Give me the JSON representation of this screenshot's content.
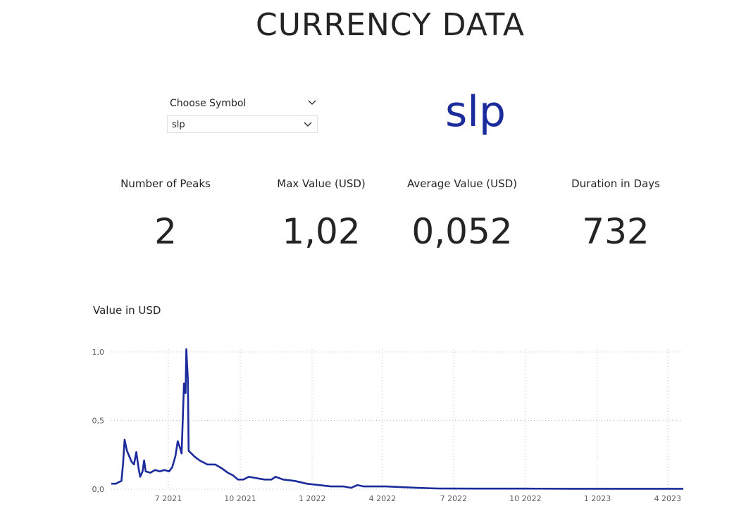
{
  "report": {
    "title": "CURRENCY DATA"
  },
  "slicer": {
    "label": "Choose Symbol",
    "selected": "slp"
  },
  "card": {
    "symbol": "slp"
  },
  "kpis": [
    {
      "label": "Number of Peaks",
      "value": "2"
    },
    {
      "label": "Max Value (USD)",
      "value": "1,02"
    },
    {
      "label": "Average Value (USD)",
      "value": "0,052"
    },
    {
      "label": "Duration in Days",
      "value": "732"
    }
  ],
  "icons": {
    "slicer_header": "chevron-down-icon",
    "slicer_dropdown": "chevron-down-icon"
  },
  "colors": {
    "series": "#1b2b9b",
    "symbol": "#1b2b9b",
    "gridline": "#c8c6c4"
  },
  "chart_data": {
    "type": "line",
    "title": "Value in USD",
    "x_ticks": [
      "7 2021",
      "10 2021",
      "1 2022",
      "4 2022",
      "7 2022",
      "10 2022",
      "1 2023",
      "4 2023"
    ],
    "x_tick_dates": [
      "2021-07-01",
      "2021-10-01",
      "2022-01-01",
      "2022-04-01",
      "2022-07-01",
      "2022-10-01",
      "2023-01-01",
      "2023-04-01"
    ],
    "y_ticks": [
      "0,0",
      "0,5",
      "1,0"
    ],
    "y_tick_values": [
      0,
      0.5,
      1.0
    ],
    "ylim": [
      0,
      1.0
    ],
    "x_range": [
      "2021-04-19",
      "2023-04-21"
    ],
    "grid": true,
    "series": [
      {
        "points": [
          [
            "2021-04-19",
            0.04
          ],
          [
            "2021-04-25",
            0.04
          ],
          [
            "2021-04-28",
            0.05
          ],
          [
            "2021-05-02",
            0.06
          ],
          [
            "2021-05-04",
            0.18
          ],
          [
            "2021-05-06",
            0.36
          ],
          [
            "2021-05-09",
            0.28
          ],
          [
            "2021-05-12",
            0.24
          ],
          [
            "2021-05-15",
            0.2
          ],
          [
            "2021-05-18",
            0.18
          ],
          [
            "2021-05-21",
            0.27
          ],
          [
            "2021-05-24",
            0.15
          ],
          [
            "2021-05-26",
            0.09
          ],
          [
            "2021-05-29",
            0.13
          ],
          [
            "2021-05-31",
            0.21
          ],
          [
            "2021-06-02",
            0.13
          ],
          [
            "2021-06-08",
            0.12
          ],
          [
            "2021-06-14",
            0.14
          ],
          [
            "2021-06-20",
            0.13
          ],
          [
            "2021-06-26",
            0.14
          ],
          [
            "2021-07-02",
            0.13
          ],
          [
            "2021-07-06",
            0.16
          ],
          [
            "2021-07-10",
            0.24
          ],
          [
            "2021-07-13",
            0.35
          ],
          [
            "2021-07-16",
            0.3
          ],
          [
            "2021-07-18",
            0.26
          ],
          [
            "2021-07-21",
            0.77
          ],
          [
            "2021-07-23",
            0.7
          ],
          [
            "2021-07-24",
            1.02
          ],
          [
            "2021-07-26",
            0.8
          ],
          [
            "2021-07-27",
            0.28
          ],
          [
            "2021-08-03",
            0.24
          ],
          [
            "2021-08-10",
            0.21
          ],
          [
            "2021-08-20",
            0.18
          ],
          [
            "2021-08-30",
            0.18
          ],
          [
            "2021-09-08",
            0.15
          ],
          [
            "2021-09-15",
            0.12
          ],
          [
            "2021-09-22",
            0.1
          ],
          [
            "2021-09-28",
            0.07
          ],
          [
            "2021-10-05",
            0.07
          ],
          [
            "2021-10-12",
            0.09
          ],
          [
            "2021-10-22",
            0.08
          ],
          [
            "2021-11-01",
            0.07
          ],
          [
            "2021-11-10",
            0.07
          ],
          [
            "2021-11-15",
            0.09
          ],
          [
            "2021-11-25",
            0.07
          ],
          [
            "2021-12-10",
            0.06
          ],
          [
            "2021-12-25",
            0.04
          ],
          [
            "2022-01-10",
            0.03
          ],
          [
            "2022-01-25",
            0.02
          ],
          [
            "2022-02-10",
            0.02
          ],
          [
            "2022-02-20",
            0.01
          ],
          [
            "2022-02-28",
            0.03
          ],
          [
            "2022-03-08",
            0.02
          ],
          [
            "2022-03-20",
            0.02
          ],
          [
            "2022-04-05",
            0.02
          ],
          [
            "2022-04-25",
            0.015
          ],
          [
            "2022-05-15",
            0.01
          ],
          [
            "2022-06-10",
            0.005
          ],
          [
            "2022-08-01",
            0.004
          ],
          [
            "2022-10-01",
            0.004
          ],
          [
            "2022-12-01",
            0.003
          ],
          [
            "2023-02-01",
            0.003
          ],
          [
            "2023-04-21",
            0.003
          ]
        ]
      }
    ]
  }
}
